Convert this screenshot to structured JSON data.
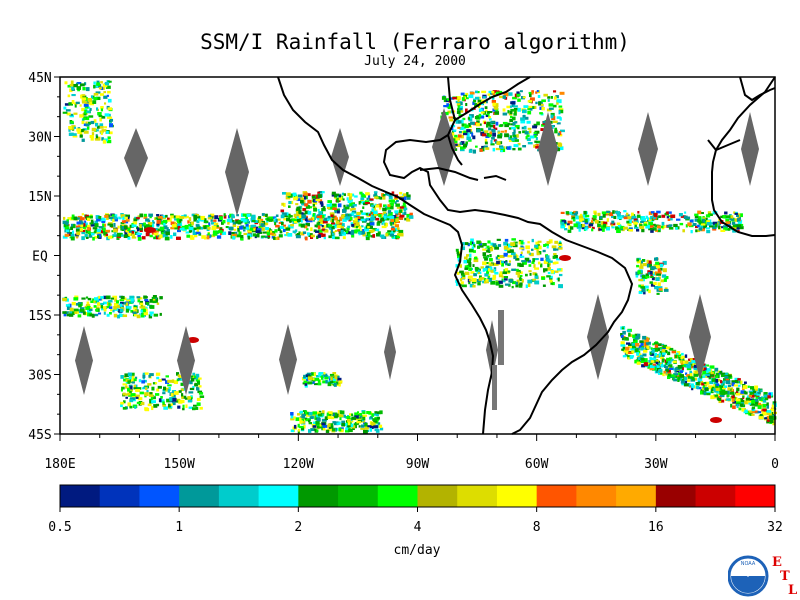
{
  "title": "SSM/I Rainfall (Ferraro algorithm)",
  "subtitle": "July 24, 2000",
  "lat_labels": [
    "45N",
    "30N",
    "15N",
    "EQ",
    "15S",
    "30S",
    "45S"
  ],
  "lon_labels": [
    "180E",
    "150W",
    "120W",
    "90W",
    "60W",
    "30W",
    "0"
  ],
  "colorbar": {
    "unit_label": "cm/day",
    "tick_labels": [
      "0.5",
      "1",
      "2",
      "4",
      "8",
      "16",
      "32"
    ],
    "colors": [
      "#001a80",
      "#0033bb",
      "#0055ff",
      "#00999a",
      "#00cccc",
      "#00ffff",
      "#009900",
      "#00bb00",
      "#00ff00",
      "#b3b300",
      "#dddd00",
      "#ffff00",
      "#ff5500",
      "#ff8800",
      "#ffaa00",
      "#990000",
      "#cc0000",
      "#ff0000"
    ]
  },
  "logo": {
    "noaa_text": "NOAA",
    "letters": [
      "E",
      "T",
      "L"
    ],
    "icon": "noaa-seagull-icon"
  }
}
